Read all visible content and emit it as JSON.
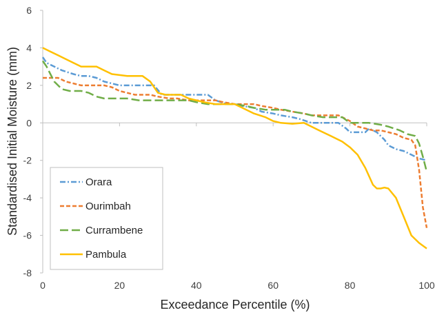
{
  "chart_data": {
    "type": "line",
    "title": "",
    "xlabel": "Exceedance Percentile (%)",
    "ylabel": "Standardised Initial Moisture (mm)",
    "xlim": [
      0,
      100
    ],
    "ylim": [
      -8,
      6
    ],
    "xticks": [
      0,
      20,
      40,
      60,
      80,
      100
    ],
    "yticks": [
      -8,
      -6,
      -4,
      -2,
      0,
      2,
      4,
      6
    ],
    "grid": false,
    "legend_position": "bottom-left",
    "series": [
      {
        "name": "Orara",
        "color": "#5B9BD5",
        "dash": "dashdot",
        "x": [
          0,
          1,
          3,
          5,
          8,
          10,
          12,
          14,
          16,
          18,
          20,
          22,
          25,
          27,
          29,
          31,
          33,
          35,
          38,
          40,
          43,
          45,
          48,
          50,
          52,
          55,
          57,
          60,
          62,
          65,
          67,
          70,
          72,
          75,
          77,
          79,
          80,
          82,
          84,
          85,
          87,
          89,
          90,
          92,
          94,
          96,
          98,
          100
        ],
        "y": [
          3.5,
          3.2,
          3.0,
          2.8,
          2.6,
          2.5,
          2.5,
          2.4,
          2.2,
          2.1,
          2.0,
          2.0,
          2.0,
          2.0,
          2.0,
          1.5,
          1.5,
          1.5,
          1.5,
          1.5,
          1.5,
          1.2,
          1.0,
          1.0,
          0.9,
          0.8,
          0.6,
          0.5,
          0.4,
          0.3,
          0.2,
          0.0,
          0.0,
          0.0,
          0.0,
          -0.3,
          -0.5,
          -0.5,
          -0.5,
          -0.3,
          -0.5,
          -0.9,
          -1.2,
          -1.4,
          -1.5,
          -1.7,
          -1.9,
          -2.0
        ]
      },
      {
        "name": "Ourimbah",
        "color": "#ED7D31",
        "dash": "dash",
        "x": [
          0,
          2,
          4,
          6,
          8,
          10,
          12,
          14,
          16,
          18,
          20,
          22,
          24,
          26,
          28,
          30,
          33,
          35,
          38,
          40,
          43,
          45,
          47,
          50,
          52,
          55,
          57,
          60,
          62,
          65,
          68,
          70,
          72,
          75,
          77,
          78,
          80,
          82,
          84,
          86,
          88,
          90,
          92,
          94,
          96,
          97,
          98,
          99,
          100
        ],
        "y": [
          2.4,
          2.4,
          2.4,
          2.2,
          2.1,
          2.0,
          2.0,
          2.0,
          2.0,
          1.9,
          1.7,
          1.6,
          1.5,
          1.5,
          1.5,
          1.4,
          1.3,
          1.3,
          1.2,
          1.2,
          1.2,
          1.2,
          1.1,
          1.0,
          1.0,
          1.0,
          0.9,
          0.8,
          0.7,
          0.6,
          0.5,
          0.4,
          0.4,
          0.4,
          0.4,
          0.3,
          0.1,
          -0.2,
          -0.3,
          -0.4,
          -0.4,
          -0.5,
          -0.6,
          -0.8,
          -0.9,
          -1.2,
          -2.5,
          -4.5,
          -5.6
        ]
      },
      {
        "name": "Currambene",
        "color": "#70AD47",
        "dash": "longdash",
        "x": [
          0,
          1,
          2,
          3,
          5,
          7,
          10,
          12,
          14,
          16,
          18,
          20,
          22,
          25,
          28,
          30,
          33,
          35,
          38,
          40,
          43,
          45,
          48,
          50,
          53,
          55,
          58,
          60,
          63,
          65,
          68,
          70,
          73,
          75,
          78,
          80,
          83,
          85,
          88,
          90,
          93,
          95,
          97,
          98,
          99,
          100
        ],
        "y": [
          3.3,
          3.0,
          2.6,
          2.2,
          1.8,
          1.7,
          1.7,
          1.6,
          1.4,
          1.3,
          1.3,
          1.3,
          1.3,
          1.2,
          1.2,
          1.2,
          1.2,
          1.2,
          1.2,
          1.1,
          1.0,
          1.0,
          1.0,
          1.0,
          0.9,
          0.8,
          0.7,
          0.7,
          0.7,
          0.6,
          0.5,
          0.4,
          0.3,
          0.3,
          0.3,
          0.0,
          0.0,
          0.0,
          -0.1,
          -0.2,
          -0.4,
          -0.6,
          -0.7,
          -1.1,
          -1.8,
          -2.6
        ]
      },
      {
        "name": "Pambula",
        "color": "#FFC000",
        "dash": "solid",
        "x": [
          0,
          2,
          4,
          6,
          8,
          10,
          12,
          14,
          16,
          18,
          20,
          22,
          24,
          26,
          28,
          30,
          32,
          34,
          36,
          38,
          40,
          42,
          45,
          48,
          50,
          52,
          55,
          58,
          60,
          62,
          65,
          68,
          70,
          72,
          75,
          78,
          80,
          82,
          84,
          86,
          87,
          88,
          89,
          90,
          92,
          94,
          96,
          98,
          100
        ],
        "y": [
          4.0,
          3.8,
          3.6,
          3.4,
          3.2,
          3.0,
          3.0,
          3.0,
          2.8,
          2.6,
          2.55,
          2.5,
          2.5,
          2.5,
          2.2,
          1.6,
          1.5,
          1.5,
          1.5,
          1.3,
          1.2,
          1.1,
          1.0,
          1.0,
          1.0,
          0.8,
          0.5,
          0.3,
          0.1,
          0.0,
          -0.05,
          0.0,
          -0.2,
          -0.4,
          -0.7,
          -1.0,
          -1.3,
          -1.7,
          -2.4,
          -3.3,
          -3.5,
          -3.5,
          -3.45,
          -3.5,
          -4.0,
          -5.0,
          -6.0,
          -6.4,
          -6.7
        ]
      }
    ]
  }
}
